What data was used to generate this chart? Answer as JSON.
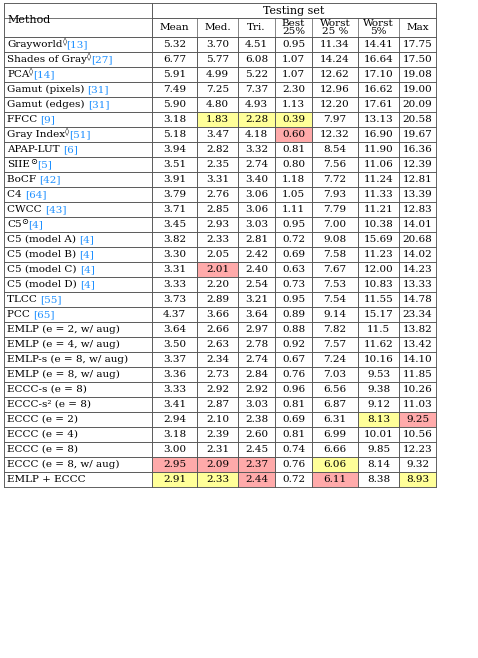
{
  "title": "Testing set",
  "col_headers_line1": [
    "Mean",
    "Med.",
    "Tri.",
    "Best",
    "Worst",
    "Worst",
    "Max"
  ],
  "col_headers_line2": [
    "",
    "",
    "",
    "25%",
    "25 %",
    "5%",
    ""
  ],
  "rows": [
    {
      "method_plain": "Grayworld",
      "method_sup": "◊",
      "method_ref": "[13]",
      "method_rest": "",
      "values": [
        "5.32",
        "3.70",
        "4.51",
        "0.95",
        "11.34",
        "14.41",
        "17.75"
      ]
    },
    {
      "method_plain": "Shades of Gray",
      "method_sup": "◊",
      "method_ref": "[27]",
      "method_rest": "",
      "values": [
        "6.77",
        "5.77",
        "6.08",
        "1.07",
        "14.24",
        "16.64",
        "17.50"
      ]
    },
    {
      "method_plain": "PCA",
      "method_sup": "◊",
      "method_ref": "[14]",
      "method_rest": "",
      "values": [
        "5.91",
        "4.99",
        "5.22",
        "1.07",
        "12.62",
        "17.10",
        "19.08"
      ]
    },
    {
      "method_plain": "Gamut (pixels) ",
      "method_sup": "",
      "method_ref": "[31]",
      "method_rest": "",
      "values": [
        "7.49",
        "7.25",
        "7.37",
        "2.30",
        "12.96",
        "16.62",
        "19.00"
      ]
    },
    {
      "method_plain": "Gamut (edges) ",
      "method_sup": "",
      "method_ref": "[31]",
      "method_rest": "",
      "values": [
        "5.90",
        "4.80",
        "4.93",
        "1.13",
        "12.20",
        "17.61",
        "20.09"
      ]
    },
    {
      "method_plain": "FFCC ",
      "method_sup": "",
      "method_ref": "[9]",
      "method_rest": "",
      "values": [
        "3.18",
        "1.83",
        "2.28",
        "0.39",
        "7.97",
        "13.13",
        "20.58"
      ]
    },
    {
      "method_plain": "Gray Index",
      "method_sup": "◊",
      "method_ref": "[51]",
      "method_rest": "",
      "values": [
        "5.18",
        "3.47",
        "4.18",
        "0.60",
        "12.32",
        "16.90",
        "19.67"
      ]
    },
    {
      "method_plain": "APAP-LUT ",
      "method_sup": "",
      "method_ref": "[6]",
      "method_rest": "",
      "values": [
        "3.94",
        "2.82",
        "3.32",
        "0.81",
        "8.54",
        "11.90",
        "16.36"
      ]
    },
    {
      "method_plain": "SIIE",
      "method_sup": "⊙",
      "method_ref": "[5]",
      "method_rest": "",
      "values": [
        "3.51",
        "2.35",
        "2.74",
        "0.80",
        "7.56",
        "11.06",
        "12.39"
      ]
    },
    {
      "method_plain": "BoCF ",
      "method_sup": "",
      "method_ref": "[42]",
      "method_rest": "",
      "values": [
        "3.91",
        "3.31",
        "3.40",
        "1.18",
        "7.72",
        "11.24",
        "12.81"
      ]
    },
    {
      "method_plain": "C4 ",
      "method_sup": "",
      "method_ref": "[64]",
      "method_rest": "",
      "values": [
        "3.79",
        "2.76",
        "3.06",
        "1.05",
        "7.93",
        "11.33",
        "13.39"
      ]
    },
    {
      "method_plain": "CWCC ",
      "method_sup": "",
      "method_ref": "[43]",
      "method_rest": "",
      "values": [
        "3.71",
        "2.85",
        "3.06",
        "1.11",
        "7.79",
        "11.21",
        "12.83"
      ]
    },
    {
      "method_plain": "C5",
      "method_sup": "⊙",
      "method_ref": "[4]",
      "method_rest": "",
      "values": [
        "3.45",
        "2.93",
        "3.03",
        "0.95",
        "7.00",
        "10.38",
        "14.01"
      ]
    },
    {
      "method_plain": "C5 (model A) ",
      "method_sup": "",
      "method_ref": "[4]",
      "method_rest": "",
      "values": [
        "3.82",
        "2.33",
        "2.81",
        "0.72",
        "9.08",
        "15.69",
        "20.68"
      ]
    },
    {
      "method_plain": "C5 (model B) ",
      "method_sup": "",
      "method_ref": "[4]",
      "method_rest": "",
      "values": [
        "3.30",
        "2.05",
        "2.42",
        "0.69",
        "7.58",
        "11.23",
        "14.02"
      ]
    },
    {
      "method_plain": "C5 (model C) ",
      "method_sup": "",
      "method_ref": "[4]",
      "method_rest": "",
      "values": [
        "3.31",
        "2.01",
        "2.40",
        "0.63",
        "7.67",
        "12.00",
        "14.23"
      ]
    },
    {
      "method_plain": "C5 (model D) ",
      "method_sup": "",
      "method_ref": "[4]",
      "method_rest": "",
      "values": [
        "3.33",
        "2.20",
        "2.54",
        "0.73",
        "7.53",
        "10.83",
        "13.33"
      ]
    },
    {
      "method_plain": "TLCC ",
      "method_sup": "",
      "method_ref": "[55]",
      "method_rest": "",
      "values": [
        "3.73",
        "2.89",
        "3.21",
        "0.95",
        "7.54",
        "11.55",
        "14.78"
      ]
    },
    {
      "method_plain": "PCC ",
      "method_sup": "",
      "method_ref": "[65]",
      "method_rest": "",
      "values": [
        "4.37",
        "3.66",
        "3.64",
        "0.89",
        "9.14",
        "15.17",
        "23.34"
      ]
    },
    {
      "method_plain": "EMLP (e = 2, w/ aug)",
      "method_sup": "",
      "method_ref": "",
      "method_rest": "",
      "values": [
        "3.64",
        "2.66",
        "2.97",
        "0.88",
        "7.82",
        "11.5",
        "13.82"
      ]
    },
    {
      "method_plain": "EMLP (e = 4, w/ aug)",
      "method_sup": "",
      "method_ref": "",
      "method_rest": "",
      "values": [
        "3.50",
        "2.63",
        "2.78",
        "0.92",
        "7.57",
        "11.62",
        "13.42"
      ]
    },
    {
      "method_plain": "EMLP-s (e = 8, w/ aug)",
      "method_sup": "",
      "method_ref": "",
      "method_rest": "",
      "values": [
        "3.37",
        "2.34",
        "2.74",
        "0.67",
        "7.24",
        "10.16",
        "14.10"
      ]
    },
    {
      "method_plain": "EMLP (e = 8, w/ aug)",
      "method_sup": "",
      "method_ref": "",
      "method_rest": "",
      "values": [
        "3.36",
        "2.73",
        "2.84",
        "0.76",
        "7.03",
        "9.53",
        "11.85"
      ]
    },
    {
      "method_plain": "ECCC-s (e = 8)",
      "method_sup": "",
      "method_ref": "",
      "method_rest": "",
      "values": [
        "3.33",
        "2.92",
        "2.92",
        "0.96",
        "6.56",
        "9.38",
        "10.26"
      ]
    },
    {
      "method_plain": "ECCC-s² (e = 8)",
      "method_sup": "",
      "method_ref": "",
      "method_rest": "",
      "values": [
        "3.41",
        "2.87",
        "3.03",
        "0.81",
        "6.87",
        "9.12",
        "11.03"
      ]
    },
    {
      "method_plain": "ECCC (e = 2)",
      "method_sup": "",
      "method_ref": "",
      "method_rest": "",
      "values": [
        "2.94",
        "2.10",
        "2.38",
        "0.69",
        "6.31",
        "8.13",
        "9.25"
      ]
    },
    {
      "method_plain": "ECCC (e = 4)",
      "method_sup": "",
      "method_ref": "",
      "method_rest": "",
      "values": [
        "3.18",
        "2.39",
        "2.60",
        "0.81",
        "6.99",
        "10.01",
        "10.56"
      ]
    },
    {
      "method_plain": "ECCC (e = 8)",
      "method_sup": "",
      "method_ref": "",
      "method_rest": "",
      "values": [
        "3.00",
        "2.31",
        "2.45",
        "0.74",
        "6.66",
        "9.85",
        "12.23"
      ]
    },
    {
      "method_plain": "ECCC (e = 8, w/ aug)",
      "method_sup": "",
      "method_ref": "",
      "method_rest": "",
      "values": [
        "2.95",
        "2.09",
        "2.37",
        "0.76",
        "6.06",
        "8.14",
        "9.32"
      ]
    },
    {
      "method_plain": "EMLP + ECCC",
      "method_sup": "",
      "method_ref": "",
      "method_rest": "",
      "values": [
        "2.91",
        "2.33",
        "2.44",
        "0.72",
        "6.11",
        "8.38",
        "8.93"
      ]
    }
  ],
  "cell_highlights": {
    "5_1": "#FFFF99",
    "5_2": "#FFFF99",
    "5_3": "#FFFF99",
    "6_3": "#FFAAAA",
    "15_1": "#FFAAAA",
    "25_5": "#FFFF99",
    "25_6": "#FFAAAA",
    "28_0": "#FFAAAA",
    "28_1": "#FFAAAA",
    "28_2": "#FFAAAA",
    "28_4": "#FFFF99",
    "29_0": "#FFFF99",
    "29_1": "#FFFF99",
    "29_2": "#FFAAAA",
    "29_4": "#FFAAAA",
    "29_6": "#FFFF99"
  },
  "border_color": "#555555",
  "text_color": "#000000",
  "ref_color": "#1e90ff",
  "bg_color": "#ffffff",
  "figsize": [
    4.78,
    6.58
  ],
  "dpi": 100
}
